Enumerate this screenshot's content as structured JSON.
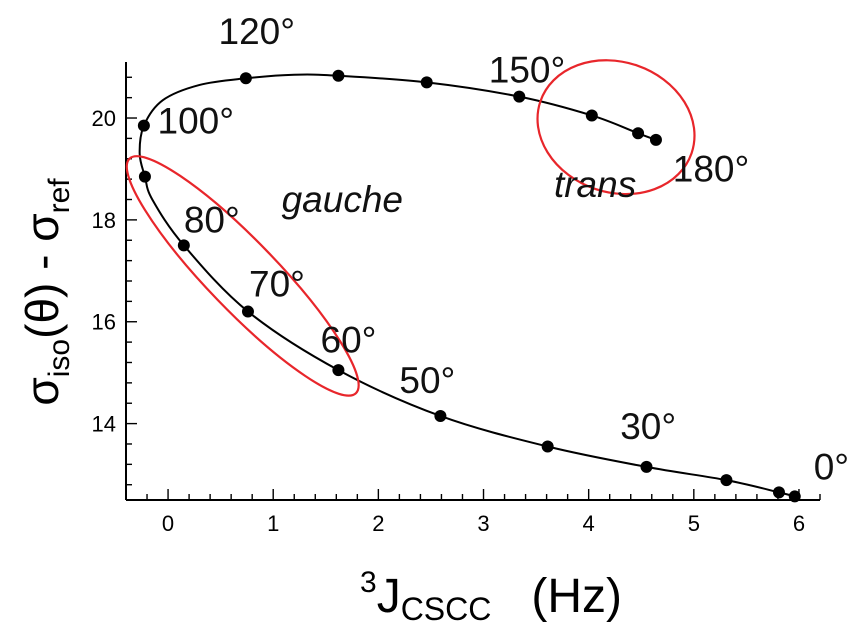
{
  "chart_data": {
    "type": "scatter",
    "xlabel": {
      "sup": "3",
      "main": "J",
      "sub": "CSCC",
      "unit": "(Hz)"
    },
    "ylabel": {
      "sigma1": "σ",
      "sub1": "iso",
      "mid": "(θ) - σ",
      "sub2": "ref"
    },
    "xlim": [
      -0.4,
      6.2
    ],
    "ylim": [
      12.5,
      21.1
    ],
    "x_ticks": [
      0,
      1,
      2,
      3,
      4,
      5,
      6
    ],
    "x_tick_labels": [
      "0",
      "1",
      "2",
      "3",
      "4",
      "5",
      "6"
    ],
    "y_ticks": [
      14,
      16,
      18,
      20
    ],
    "y_tick_labels": [
      "14",
      "16",
      "18",
      "20"
    ],
    "grid": false,
    "points": [
      {
        "x": 5.96,
        "y": 12.57
      },
      {
        "x": 5.81,
        "y": 12.65
      },
      {
        "x": 5.31,
        "y": 12.89
      },
      {
        "x": 4.55,
        "y": 13.15
      },
      {
        "x": 3.61,
        "y": 13.55
      },
      {
        "x": 2.59,
        "y": 14.15
      },
      {
        "x": 1.62,
        "y": 15.05
      },
      {
        "x": 0.76,
        "y": 16.2
      },
      {
        "x": 0.15,
        "y": 17.5
      },
      {
        "x": -0.22,
        "y": 18.85
      },
      {
        "x": -0.23,
        "y": 19.85
      },
      {
        "x": 0.74,
        "y": 20.78
      },
      {
        "x": 1.62,
        "y": 20.83
      },
      {
        "x": 2.46,
        "y": 20.7
      },
      {
        "x": 3.34,
        "y": 20.42
      },
      {
        "x": 4.03,
        "y": 20.05
      },
      {
        "x": 4.47,
        "y": 19.7
      },
      {
        "x": 4.64,
        "y": 19.57
      }
    ],
    "curve": [
      [
        5.98,
        12.56
      ],
      [
        5.81,
        12.65
      ],
      [
        5.31,
        12.89
      ],
      [
        4.55,
        13.15
      ],
      [
        3.61,
        13.55
      ],
      [
        2.59,
        14.15
      ],
      [
        1.62,
        15.05
      ],
      [
        0.76,
        16.2
      ],
      [
        0.15,
        17.5
      ],
      [
        -0.15,
        18.4
      ],
      [
        -0.22,
        18.85
      ],
      [
        -0.27,
        19.3
      ],
      [
        -0.23,
        19.85
      ],
      [
        -0.05,
        20.35
      ],
      [
        0.3,
        20.65
      ],
      [
        0.74,
        20.78
      ],
      [
        1.2,
        20.85
      ],
      [
        1.62,
        20.83
      ],
      [
        2.46,
        20.7
      ],
      [
        3.34,
        20.42
      ],
      [
        4.03,
        20.05
      ],
      [
        4.47,
        19.7
      ],
      [
        4.64,
        19.57
      ]
    ],
    "angle_labels": [
      {
        "text": "0°",
        "x": 6.14,
        "y": 12.9
      },
      {
        "text": "30°",
        "x": 4.3,
        "y": 13.7
      },
      {
        "text": "50°",
        "x": 2.2,
        "y": 14.6
      },
      {
        "text": "60°",
        "x": 1.45,
        "y": 15.4
      },
      {
        "text": "70°",
        "x": 0.77,
        "y": 16.5
      },
      {
        "text": "80°",
        "x": 0.15,
        "y": 17.75
      },
      {
        "text": "100°",
        "x": -0.1,
        "y": 19.7
      },
      {
        "text": "120°",
        "x": 0.48,
        "y": 21.45
      },
      {
        "text": "150°",
        "x": 3.05,
        "y": 20.7
      },
      {
        "text": "180°",
        "x": 4.8,
        "y": 18.75
      }
    ],
    "region_labels": [
      {
        "text": "gauche",
        "x": 1.08,
        "y": 18.15
      },
      {
        "text": "trans",
        "x": 3.67,
        "y": 18.45
      }
    ],
    "ellipses": [
      {
        "name": "gauche-ellipse",
        "cx": 0.71,
        "cy": 16.9,
        "rx_deg_len": 2.1,
        "angle_deg": 46,
        "rx": 1.55,
        "ry": 0.33
      },
      {
        "name": "trans-ellipse",
        "cx": 4.26,
        "cy": 19.82,
        "angle_deg": 19,
        "rx": 0.76,
        "ry": 0.62
      }
    ],
    "colors": {
      "marks": "#000000",
      "ellipse": "#e8262b",
      "text": "#111111"
    }
  }
}
